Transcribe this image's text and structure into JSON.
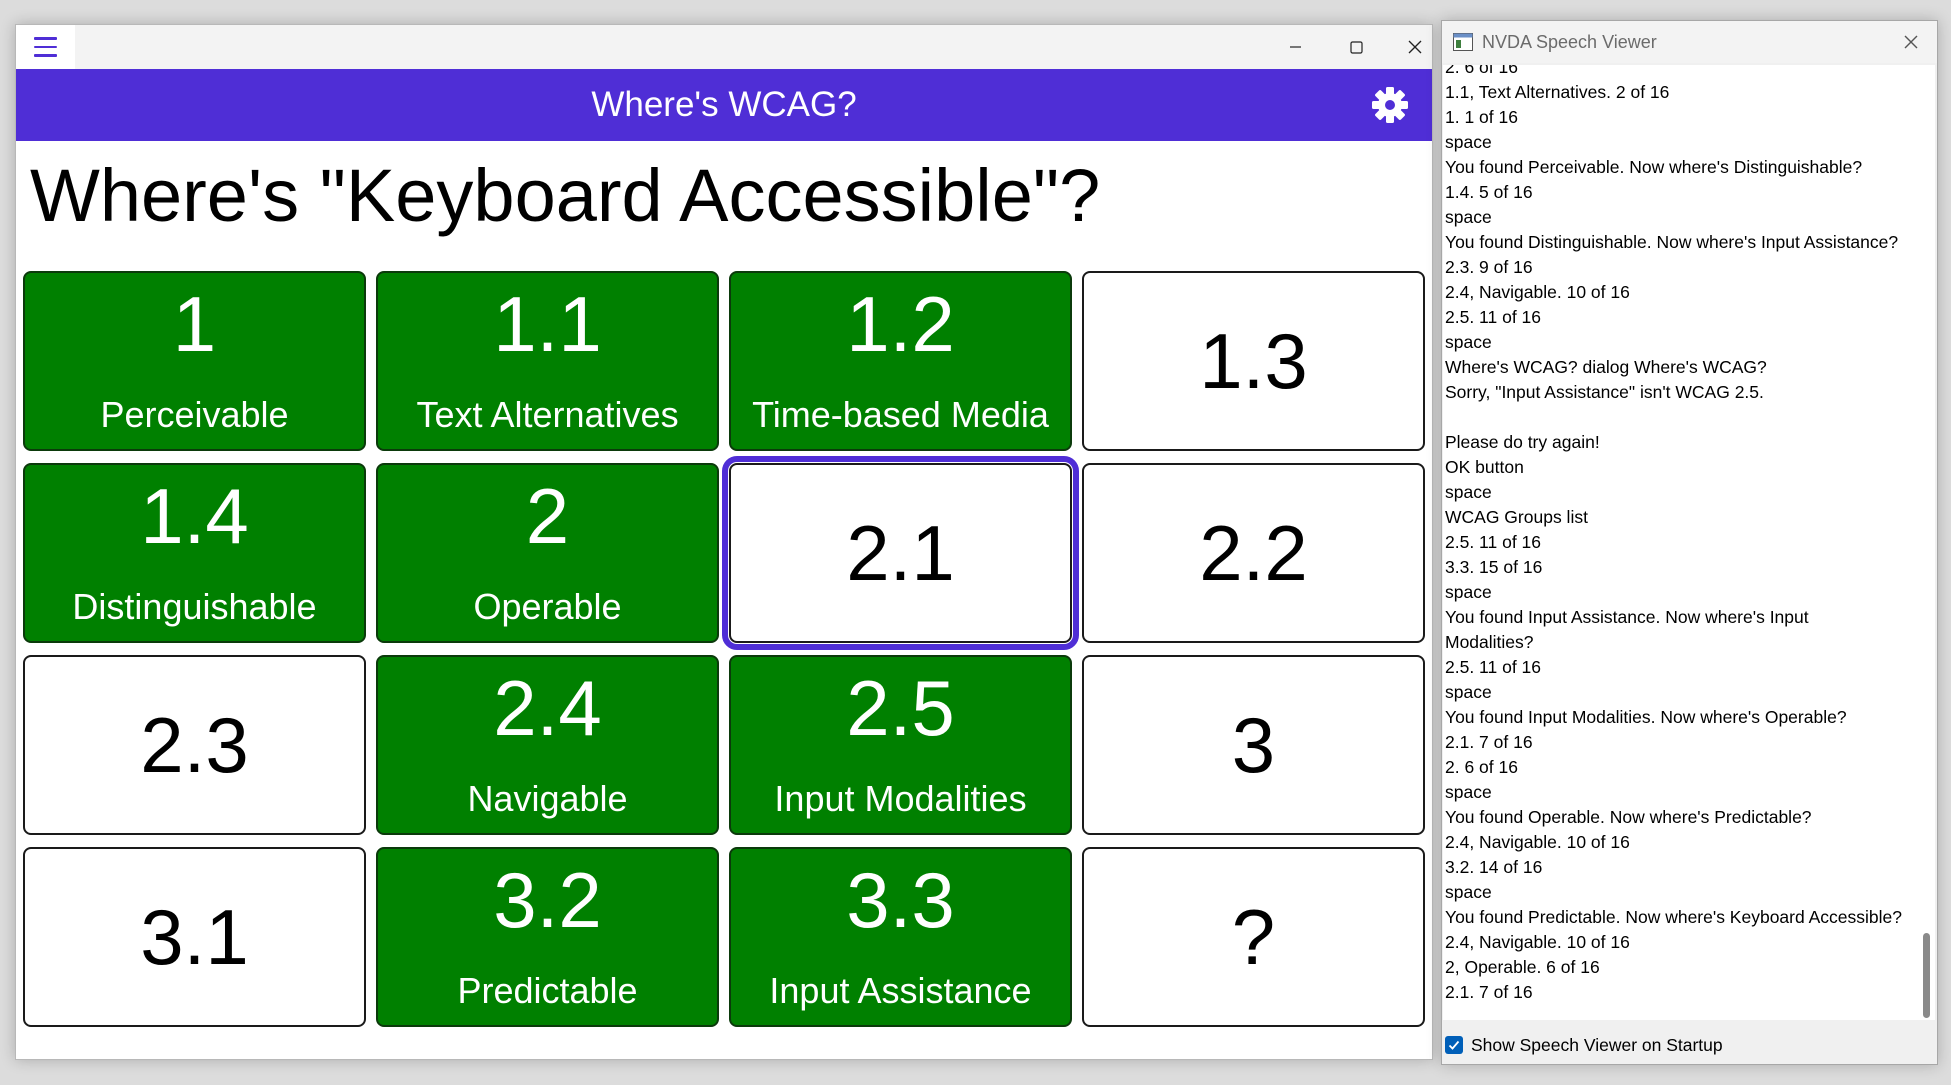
{
  "app": {
    "header_title": "Where's WCAG?",
    "question": "Where's \"Keyboard Accessible\"?",
    "colors": {
      "accent": "#4F2ED6",
      "found": "#008000",
      "tile_border": "#1A1A1A"
    },
    "icons": [
      "hamburger-menu-icon",
      "minimize-icon",
      "maximize-icon",
      "close-icon",
      "gear-icon"
    ],
    "tiles": [
      {
        "number": "1",
        "name": "Perceivable",
        "found": true
      },
      {
        "number": "1.1",
        "name": "Text Alternatives",
        "found": true
      },
      {
        "number": "1.2",
        "name": "Time-based Media",
        "found": true
      },
      {
        "number": "1.3",
        "name": "",
        "found": false
      },
      {
        "number": "1.4",
        "name": "Distinguishable",
        "found": true
      },
      {
        "number": "2",
        "name": "Operable",
        "found": true
      },
      {
        "number": "2.1",
        "name": "",
        "found": false,
        "focused": true
      },
      {
        "number": "2.2",
        "name": "",
        "found": false
      },
      {
        "number": "2.3",
        "name": "",
        "found": false
      },
      {
        "number": "2.4",
        "name": "Navigable",
        "found": true
      },
      {
        "number": "2.5",
        "name": "Input Modalities",
        "found": true
      },
      {
        "number": "3",
        "name": "",
        "found": false
      },
      {
        "number": "3.1",
        "name": "",
        "found": false
      },
      {
        "number": "3.2",
        "name": "Predictable",
        "found": true
      },
      {
        "number": "3.3",
        "name": "Input Assistance",
        "found": true
      },
      {
        "number": "?",
        "name": "",
        "found": false
      }
    ]
  },
  "speech_viewer": {
    "title": "NVDA Speech Viewer",
    "log_lines": [
      "2.  6 of 16",
      "1.1, Text Alternatives.  2 of 16",
      "1.  1 of 16",
      "space",
      "You found Perceivable. Now where's Distinguishable?",
      "1.4.  5 of 16",
      "space",
      "You found Distinguishable. Now where's Input Assistance?",
      "2.3.  9 of 16",
      "2.4, Navigable.  10 of 16",
      "2.5.  11 of 16",
      "space",
      "Where's WCAG?  dialog  Where's WCAG?",
      "Sorry, \"Input Assistance\" isn't WCAG 2.5.",
      "",
      "Please do try again!",
      "OK  button",
      "space",
      "WCAG Groups  list",
      "2.5.  11 of 16",
      "3.3.  15 of 16",
      "space",
      "You found Input Assistance. Now where's Input",
      "Modalities?",
      "2.5.  11 of 16",
      "space",
      "You found Input Modalities. Now where's Operable?",
      "2.1.  7 of 16",
      "2.  6 of 16",
      "space",
      "You found Operable. Now where's Predictable?",
      "2.4, Navigable.  10 of 16",
      "3.2.  14 of 16",
      "space",
      "You found Predictable. Now where's Keyboard Accessible?",
      "2.4, Navigable.  10 of 16",
      "2, Operable.  6 of 16",
      "2.1.  7 of 16"
    ],
    "startup_checkbox_label": "Show Speech Viewer on Startup",
    "startup_checked": true,
    "icons": [
      "speech-viewer-app-icon",
      "close-icon",
      "checkmark-icon"
    ]
  }
}
